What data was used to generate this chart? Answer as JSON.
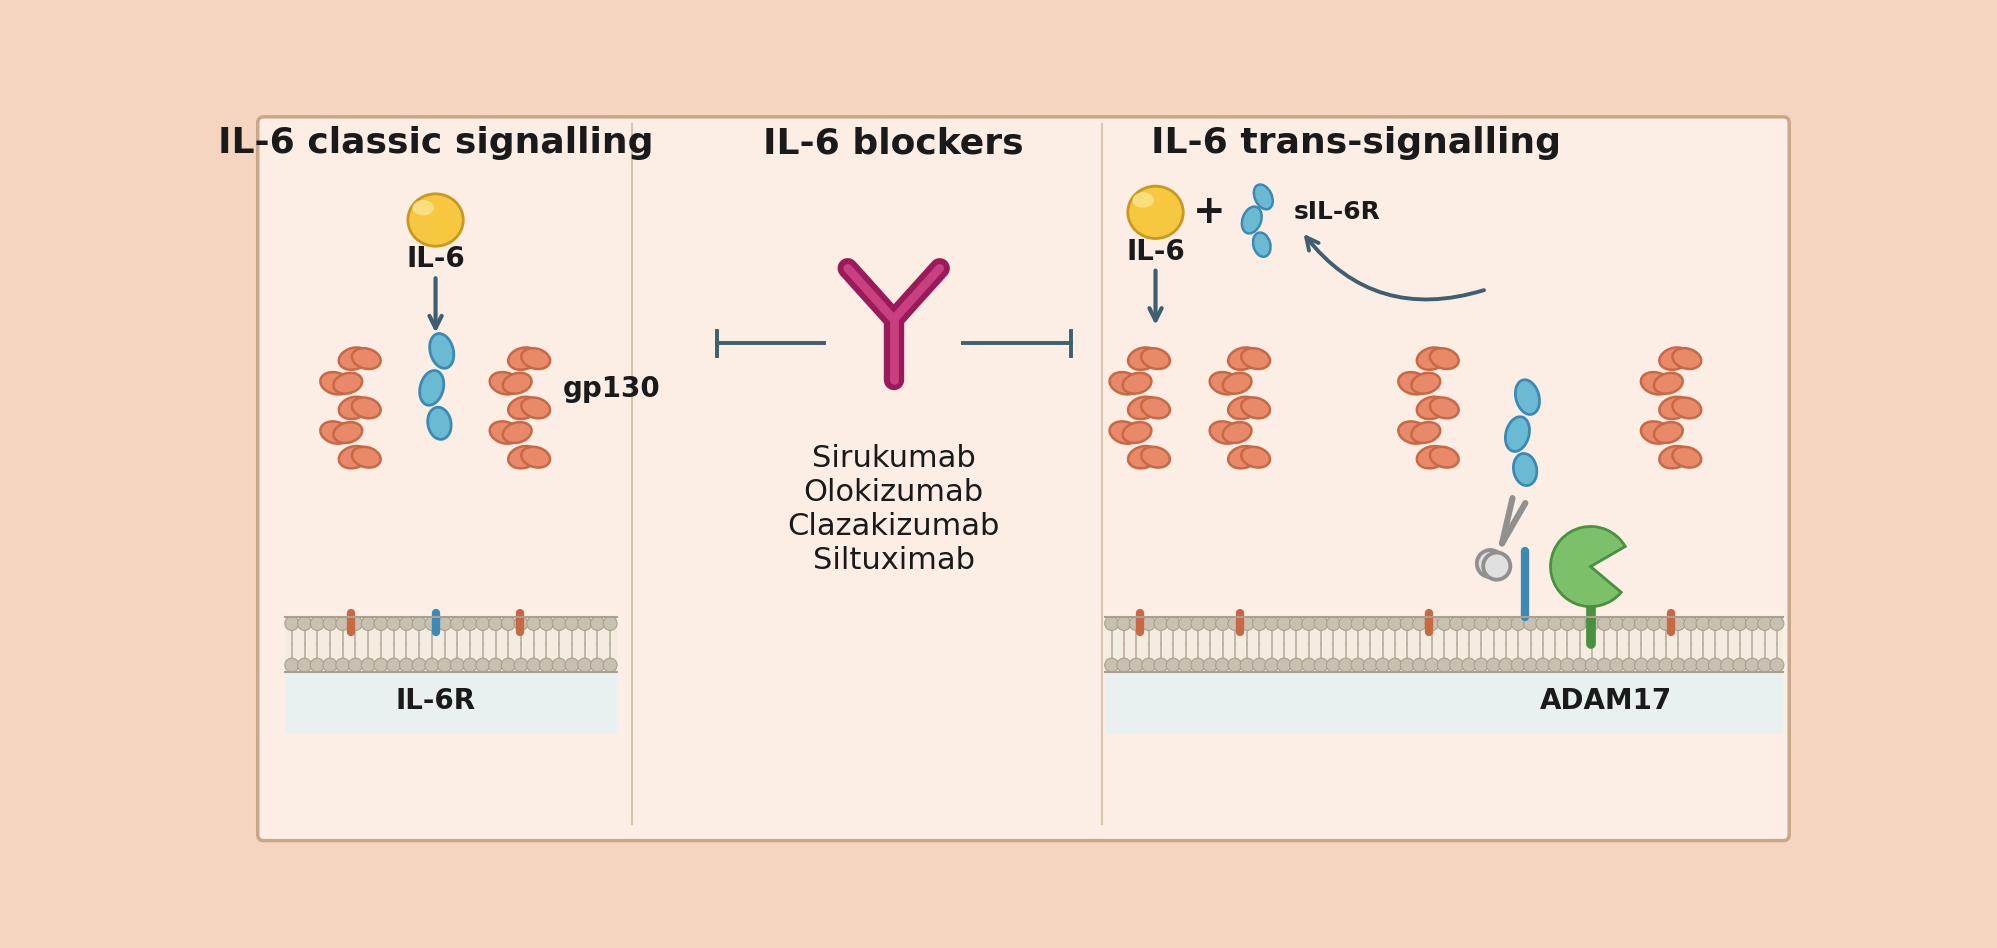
{
  "bg_outer": "#f5d5c0",
  "bg_inner": "#fdeee5",
  "title1": "IL-6 classic signalling",
  "title2": "IL-6 blockers",
  "title3": "IL-6 trans-signalling",
  "title_fontsize": 26,
  "label_fontsize": 20,
  "drug_fontsize": 22,
  "salmon": "#E8896A",
  "salmon_edge": "#c86845",
  "blue": "#6BBAD4",
  "blue_edge": "#3a8ab4",
  "yellow": "#F5C840",
  "yellow_edge": "#c89820",
  "green": "#7DC06A",
  "green_edge": "#4a9040",
  "antibody_color": "#9B1B5A",
  "antibody_inner": "#c94080",
  "arrow_color": "#3d5f70",
  "scissor_color": "#909090",
  "drugs": [
    "Sirukumab",
    "Olokizumab",
    "Clazakizumab",
    "Siltuximab"
  ],
  "text_color": "#1a1a1a",
  "mem_top_color": "#e8e0d0",
  "mem_head_color": "#d0c8b8",
  "mem_inner_color": "#f0ece0",
  "mem_stem_color": "#c0b898"
}
